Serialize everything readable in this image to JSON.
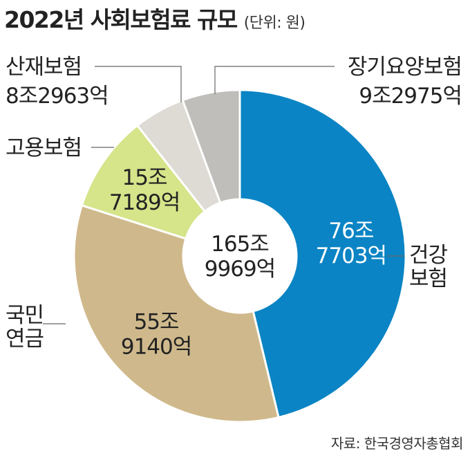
{
  "title": "2022년 사회보험료 규모",
  "unit": "(단위: 원)",
  "source": "자료: 한국경영자총협회",
  "chart_data": {
    "type": "pie",
    "style": "donut",
    "unit": "억원",
    "center_label": [
      "165조",
      "9969억"
    ],
    "total": 1659969,
    "slices": [
      {
        "name": "건강보험",
        "name_lines": [
          "건강",
          "보험"
        ],
        "value": 767703,
        "value_lines": [
          "76조",
          "7703억"
        ],
        "color": "#0a84c4",
        "text_color": "#ffffff"
      },
      {
        "name": "국민연금",
        "name_lines": [
          "국민",
          "연금"
        ],
        "value": 559140,
        "value_lines": [
          "55조",
          "9140억"
        ],
        "color": "#cfb98c",
        "text_color": "#222222"
      },
      {
        "name": "고용보험",
        "name_lines": [
          "고용보험"
        ],
        "value": 157189,
        "value_lines": [
          "15조",
          "7189억"
        ],
        "color": "#d6e48a",
        "text_color": "#222222"
      },
      {
        "name": "산재보험",
        "name_lines": [
          "산재보험"
        ],
        "value": 82963,
        "value_lines": [
          "8조2963억"
        ],
        "color": "#dedbd5",
        "text_color": "#222222"
      },
      {
        "name": "장기요양보험",
        "name_lines": [
          "장기요양보험"
        ],
        "value": 92975,
        "value_lines": [
          "9조2975억"
        ],
        "color": "#c0bebb",
        "text_color": "#222222"
      }
    ]
  }
}
